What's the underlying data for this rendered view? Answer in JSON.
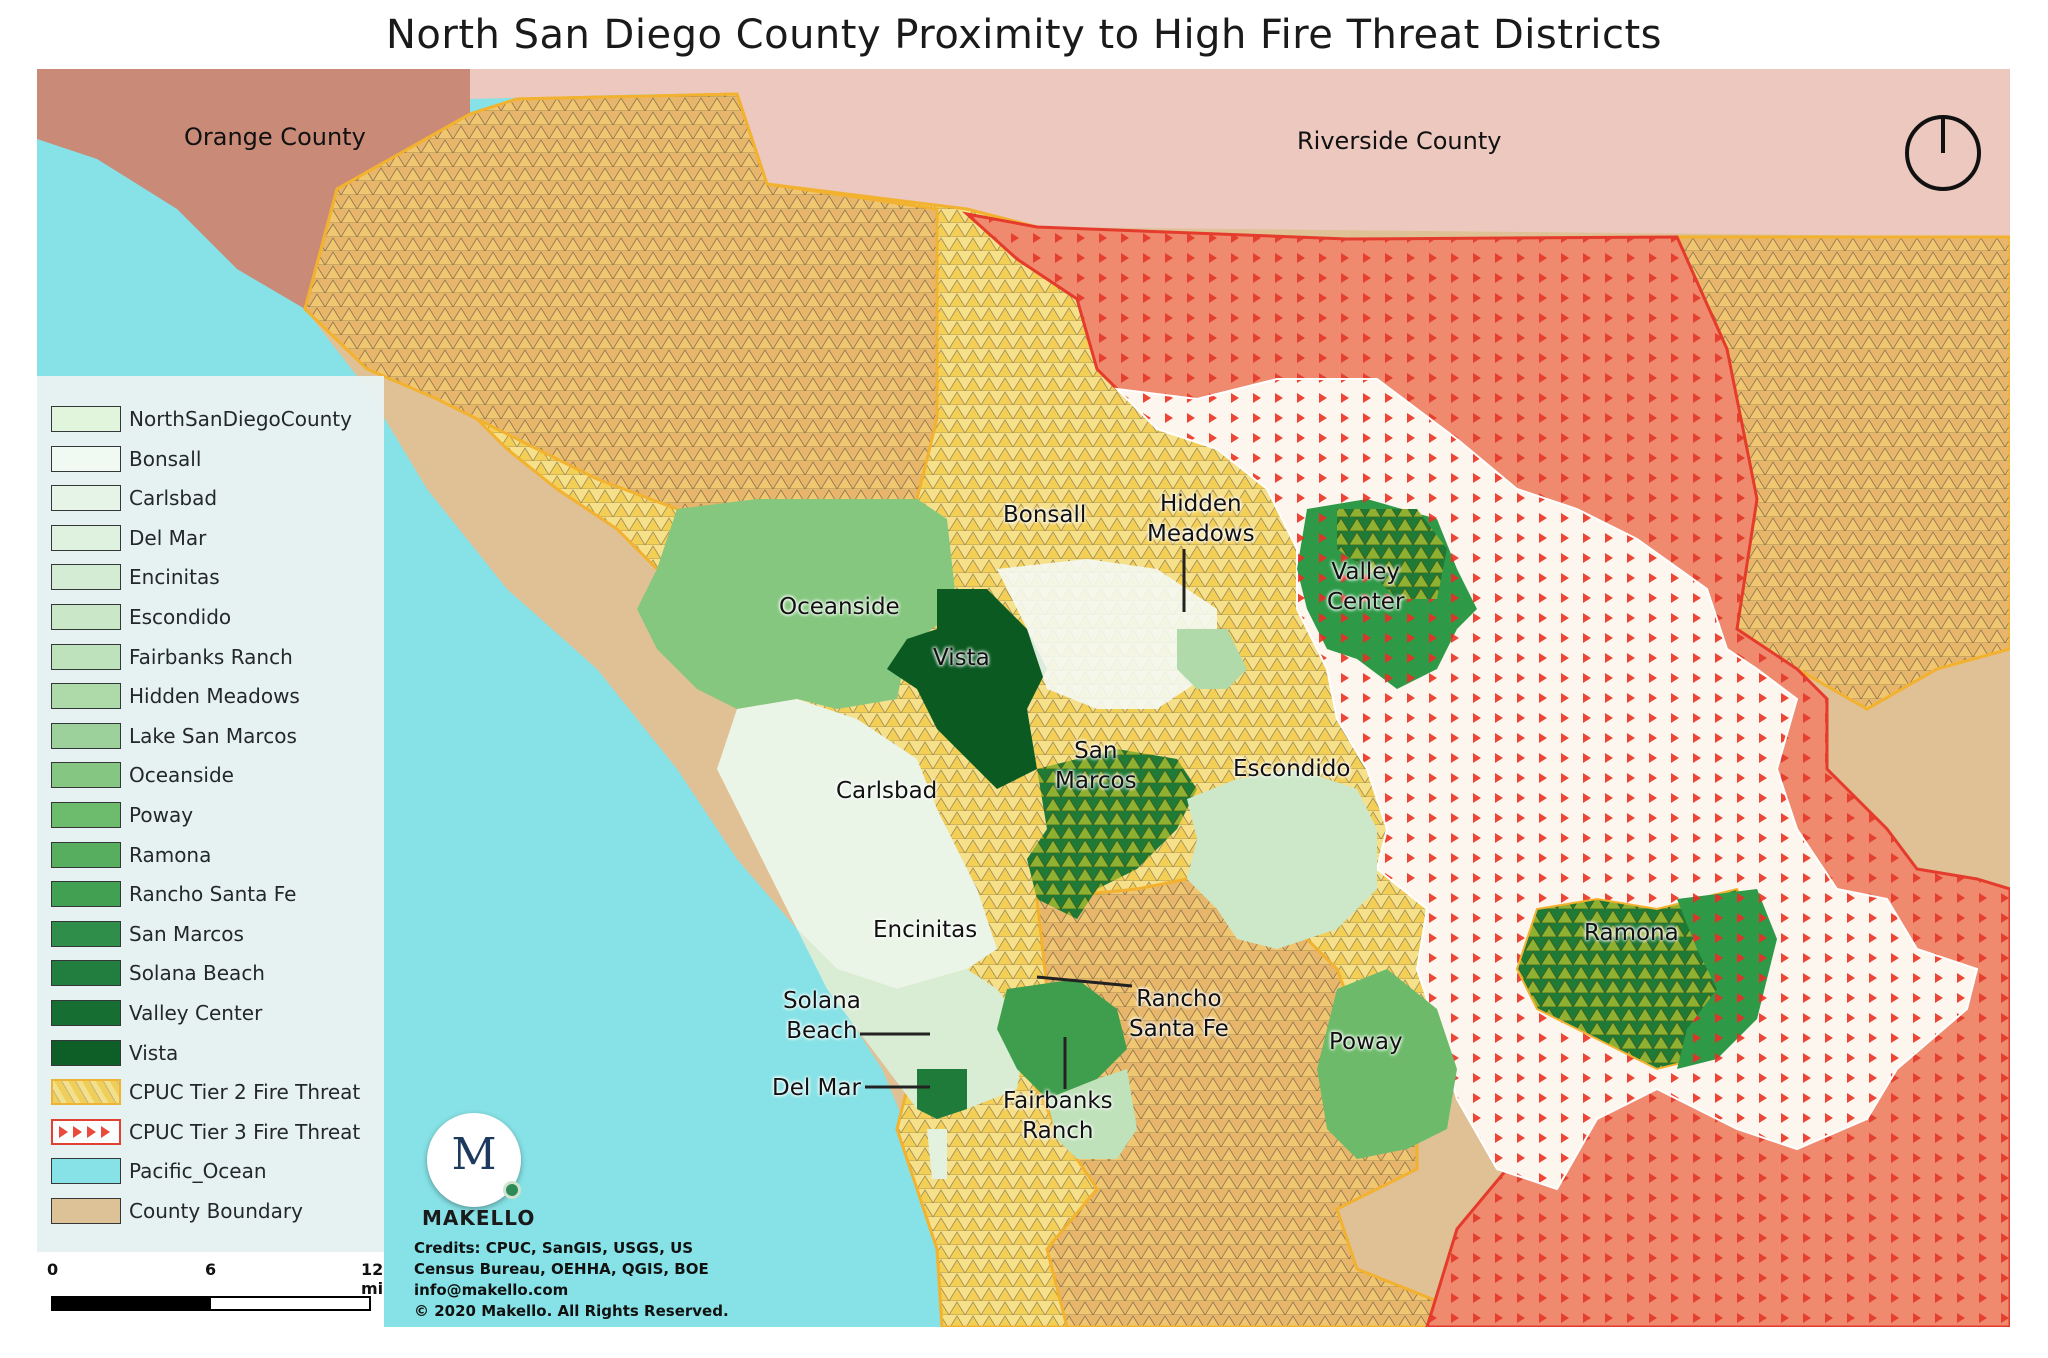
{
  "title": "North San Diego County Proximity to High Fire Threat Districts",
  "counties": {
    "orange": "Orange County",
    "riverside": "Riverside County"
  },
  "places": {
    "bonsall": "Bonsall",
    "hidden_meadows_1": "Hidden",
    "hidden_meadows_2": "Meadows",
    "valley_center_1": "Valley",
    "valley_center_2": "Center",
    "oceanside": "Oceanside",
    "vista": "Vista",
    "san_marcos_1": "San",
    "san_marcos_2": "Marcos",
    "escondido": "Escondido",
    "carlsbad": "Carlsbad",
    "encinitas": "Encinitas",
    "ramona": "Ramona",
    "rancho_1": "Rancho",
    "rancho_2": "Santa Fe",
    "solana_1": "Solana",
    "solana_2": "Beach",
    "poway": "Poway",
    "del_mar": "Del Mar",
    "fairbanks_1": "Fairbanks",
    "fairbanks_2": "Ranch"
  },
  "legend": [
    {
      "label": "NorthSanDiegoCounty",
      "color": "#e3f6dc",
      "pattern": "none"
    },
    {
      "label": "Bonsall",
      "color": "#f4faf3",
      "pattern": "none"
    },
    {
      "label": "Carlsbad",
      "color": "#eaf5e8",
      "pattern": "none"
    },
    {
      "label": "Del Mar",
      "color": "#e2f2df",
      "pattern": "none"
    },
    {
      "label": "Encinitas",
      "color": "#d8edd4",
      "pattern": "none"
    },
    {
      "label": "Escondido",
      "color": "#cde8c8",
      "pattern": "none"
    },
    {
      "label": "Fairbanks Ranch",
      "color": "#c0e2ba",
      "pattern": "none"
    },
    {
      "label": "Hidden Meadows",
      "color": "#b0daa9",
      "pattern": "none"
    },
    {
      "label": "Lake San Marcos",
      "color": "#9ed19a",
      "pattern": "none"
    },
    {
      "label": "Oceanside",
      "color": "#85c77f",
      "pattern": "none"
    },
    {
      "label": "Poway",
      "color": "#6dbb6a",
      "pattern": "none"
    },
    {
      "label": "Ramona",
      "color": "#55ad5a",
      "pattern": "none"
    },
    {
      "label": "Rancho Santa Fe",
      "color": "#3f9e4e",
      "pattern": "none"
    },
    {
      "label": "San Marcos",
      "color": "#2d8c44",
      "pattern": "none"
    },
    {
      "label": "Solana Beach",
      "color": "#1e7b39",
      "pattern": "none"
    },
    {
      "label": "Valley Center",
      "color": "#136b2d",
      "pattern": "none"
    },
    {
      "label": "Vista",
      "color": "#0b5a22",
      "pattern": "none"
    },
    {
      "label": "CPUC Tier 2 Fire Threat",
      "color": "#f5d66a",
      "pattern": "tier2"
    },
    {
      "label": "CPUC Tier 3 Fire Threat",
      "color": "#ffffff",
      "pattern": "tier3"
    },
    {
      "label": "Pacific_Ocean",
      "color": "#86e2e6",
      "pattern": "none"
    },
    {
      "label": "County Boundary",
      "color": "#e0c095",
      "pattern": "none"
    }
  ],
  "scale_bar": {
    "tick0": "0",
    "tick1": "6",
    "tick2": "12 mi"
  },
  "credits": [
    "Credits: CPUC, SanGIS, USGS, US",
    "Census Bureau,  OEHHA, QGIS, BOE",
    "info@makello.com",
    "© 2020 Makello. All Rights Reserved."
  ],
  "brand": {
    "logo_letter": "M",
    "name": "MAKELLO"
  },
  "colors": {
    "ocean": "#86e2e6",
    "orange_county": "#c98b78",
    "riverside_county": "#ecc8bf",
    "county_boundary": "#e0c095",
    "tier2_fill": "#f5d66a",
    "tier2_outline": "#f2b230",
    "tier3_outline": "#e53b2c",
    "tier3_marks": "#ef4a36"
  },
  "icons": {
    "north_arrow": "north-arrow-icon"
  }
}
